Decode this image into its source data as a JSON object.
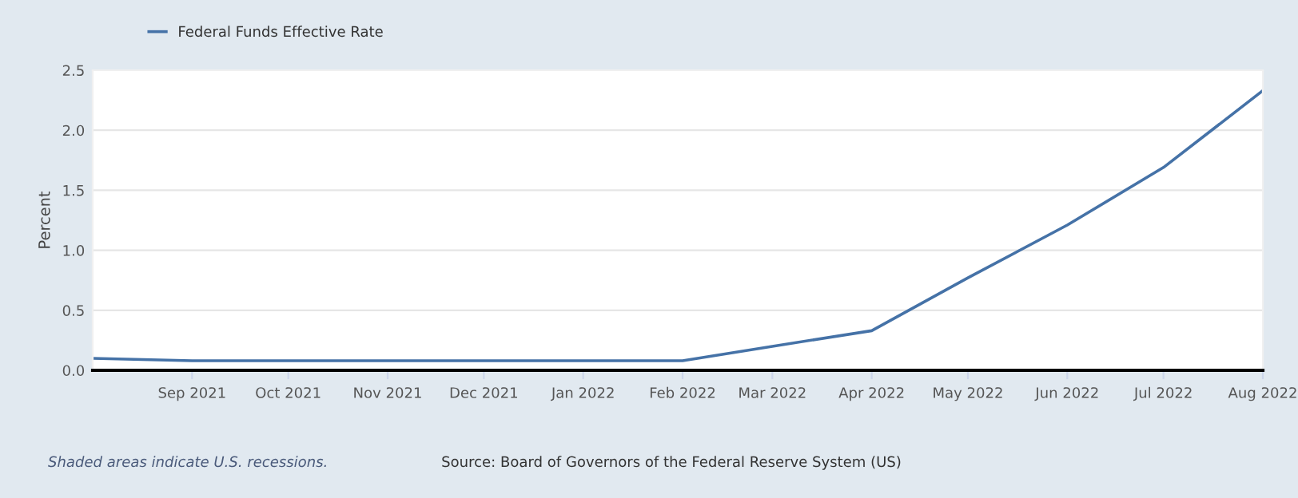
{
  "chart_data": {
    "type": "line",
    "ylabel": "Percent",
    "x": [
      "2021-08-01",
      "2021-09-01",
      "2021-10-01",
      "2021-11-01",
      "2021-12-01",
      "2022-01-01",
      "2022-02-01",
      "2022-03-01",
      "2022-04-01",
      "2022-05-01",
      "2022-06-01",
      "2022-07-01",
      "2022-08-01"
    ],
    "series": [
      {
        "name": "Federal Funds Effective Rate",
        "color": "#4572a7",
        "values": [
          0.1,
          0.08,
          0.08,
          0.08,
          0.08,
          0.08,
          0.08,
          0.2,
          0.33,
          0.77,
          1.21,
          1.69,
          2.33
        ]
      }
    ],
    "xlim": [
      "2021-08-01",
      "2022-08-01"
    ],
    "xticks": [
      {
        "value": "2021-09-01",
        "label": "Sep 2021"
      },
      {
        "value": "2021-10-01",
        "label": "Oct 2021"
      },
      {
        "value": "2021-11-01",
        "label": "Nov 2021"
      },
      {
        "value": "2021-12-01",
        "label": "Dec 2021"
      },
      {
        "value": "2022-01-01",
        "label": "Jan 2022"
      },
      {
        "value": "2022-02-01",
        "label": "Feb 2022"
      },
      {
        "value": "2022-03-01",
        "label": "Mar 2022"
      },
      {
        "value": "2022-04-01",
        "label": "Apr 2022"
      },
      {
        "value": "2022-05-01",
        "label": "May 2022"
      },
      {
        "value": "2022-06-01",
        "label": "Jun 2022"
      },
      {
        "value": "2022-07-01",
        "label": "Jul 2022"
      },
      {
        "value": "2022-08-01",
        "label": "Aug 2022"
      }
    ],
    "ylim": [
      0,
      2.5
    ],
    "yticks": [
      {
        "value": 0,
        "label": "0.0"
      },
      0.5,
      {
        "value": 1,
        "label": "1.0"
      },
      1.5,
      {
        "value": 2,
        "label": "2.0"
      },
      2.5
    ],
    "grid": "y",
    "legend": "top left",
    "marker": "none",
    "line_style": "solid",
    "annotations": [
      "Shaded areas indicate U.S. recessions.",
      "Source: Board of Governors of the Federal Reserve System (US)"
    ]
  }
}
